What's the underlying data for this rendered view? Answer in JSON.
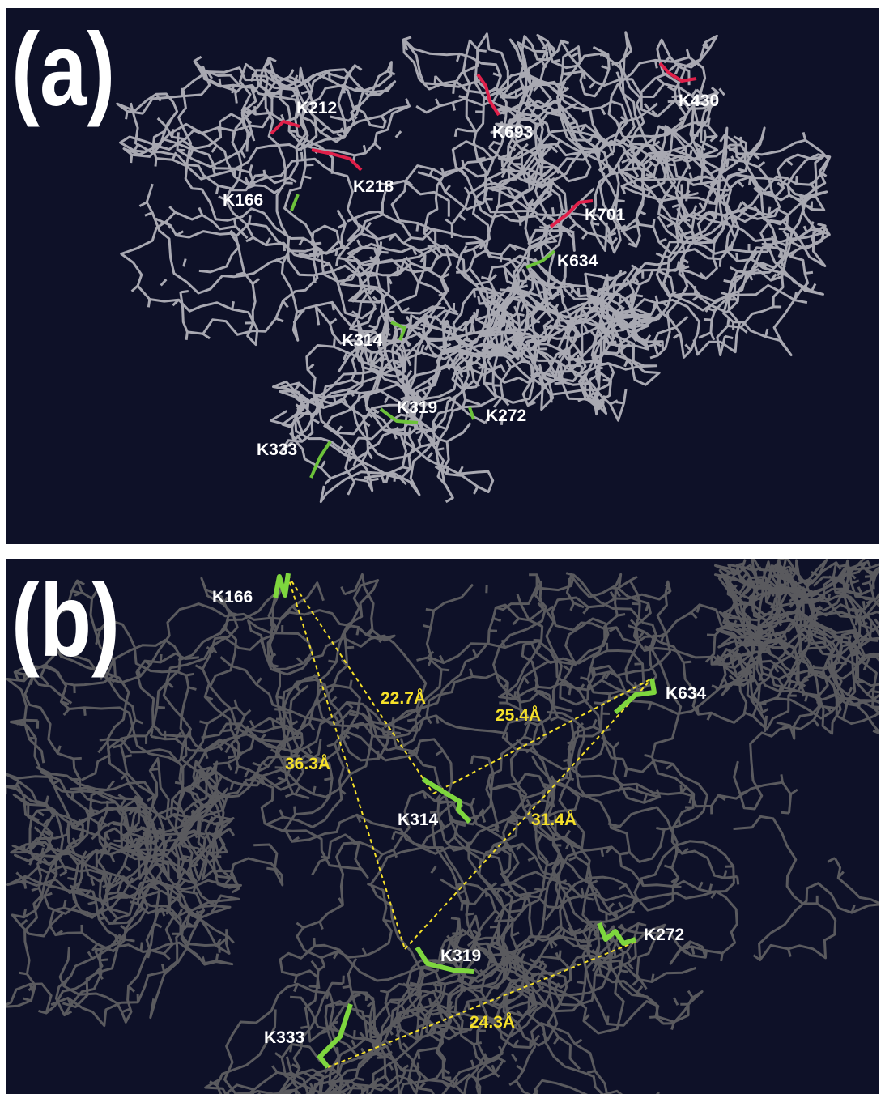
{
  "panels": [
    {
      "label": "(a)",
      "residues": [
        "K212",
        "K693",
        "K430",
        "K218",
        "K166",
        "K701",
        "K634",
        "K314",
        "K319",
        "K272",
        "K333"
      ]
    },
    {
      "label": "(b)",
      "residues": [
        "K166",
        "K634",
        "K314",
        "K319",
        "K272",
        "K333"
      ],
      "distances": [
        "22.7Å",
        "25.4Å",
        "36.3Å",
        "31.4Å",
        "24.3Å"
      ]
    }
  ]
}
